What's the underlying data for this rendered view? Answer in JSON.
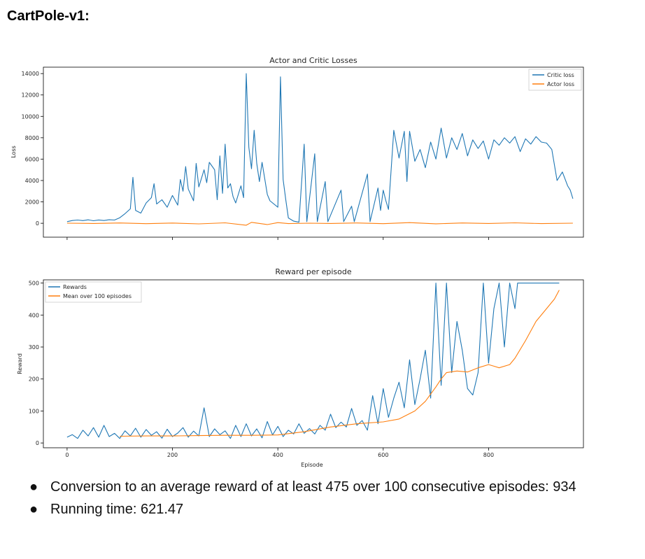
{
  "page": {
    "title": "CartPole-v1:",
    "bullets": [
      "Conversion to an average reward of at least 475 over 100 consecutive episodes: 934",
      "Running time: 621.47"
    ]
  },
  "colors": {
    "blue": "#1f77b4",
    "orange": "#ff7f0e"
  },
  "chart_data": [
    {
      "type": "line",
      "title": "Actor and Critic Losses",
      "xlabel": "",
      "ylabel": "Loss",
      "xlim": [
        -45,
        980
      ],
      "ylim": [
        -1300,
        14600
      ],
      "yticks": [
        0,
        2000,
        4000,
        6000,
        8000,
        10000,
        12000,
        14000
      ],
      "legend_position": "top-right",
      "grid": false,
      "series": [
        {
          "name": "Critic loss",
          "color": "#1f77b4",
          "points": [
            [
              0,
              150
            ],
            [
              10,
              260
            ],
            [
              20,
              300
            ],
            [
              30,
              250
            ],
            [
              40,
              320
            ],
            [
              50,
              240
            ],
            [
              60,
              310
            ],
            [
              70,
              260
            ],
            [
              80,
              330
            ],
            [
              90,
              300
            ],
            [
              100,
              520
            ],
            [
              110,
              900
            ],
            [
              120,
              1350
            ],
            [
              125,
              4300
            ],
            [
              130,
              1200
            ],
            [
              140,
              950
            ],
            [
              150,
              1900
            ],
            [
              160,
              2400
            ],
            [
              165,
              3700
            ],
            [
              170,
              1800
            ],
            [
              180,
              2200
            ],
            [
              190,
              1500
            ],
            [
              200,
              2600
            ],
            [
              210,
              1700
            ],
            [
              215,
              4100
            ],
            [
              220,
              3000
            ],
            [
              225,
              5300
            ],
            [
              230,
              3200
            ],
            [
              240,
              2100
            ],
            [
              245,
              5600
            ],
            [
              250,
              3400
            ],
            [
              260,
              5000
            ],
            [
              265,
              3800
            ],
            [
              270,
              5700
            ],
            [
              280,
              5000
            ],
            [
              285,
              2200
            ],
            [
              290,
              6300
            ],
            [
              295,
              2800
            ],
            [
              300,
              7400
            ],
            [
              305,
              3300
            ],
            [
              310,
              3700
            ],
            [
              315,
              2500
            ],
            [
              320,
              1900
            ],
            [
              330,
              3500
            ],
            [
              335,
              2400
            ],
            [
              340,
              14000
            ],
            [
              345,
              7100
            ],
            [
              350,
              5100
            ],
            [
              355,
              8700
            ],
            [
              360,
              5600
            ],
            [
              365,
              3900
            ],
            [
              370,
              5700
            ],
            [
              380,
              2700
            ],
            [
              385,
              2100
            ],
            [
              400,
              1500
            ],
            [
              405,
              13700
            ],
            [
              410,
              4100
            ],
            [
              415,
              2200
            ],
            [
              420,
              500
            ],
            [
              430,
              200
            ],
            [
              440,
              100
            ],
            [
              450,
              7400
            ],
            [
              455,
              150
            ],
            [
              470,
              6500
            ],
            [
              475,
              150
            ],
            [
              490,
              3900
            ],
            [
              495,
              150
            ],
            [
              520,
              3100
            ],
            [
              525,
              150
            ],
            [
              540,
              1600
            ],
            [
              545,
              150
            ],
            [
              570,
              4600
            ],
            [
              575,
              150
            ],
            [
              590,
              3300
            ],
            [
              595,
              1200
            ],
            [
              600,
              3100
            ],
            [
              605,
              2100
            ],
            [
              610,
              1300
            ],
            [
              620,
              8700
            ],
            [
              630,
              6100
            ],
            [
              640,
              8600
            ],
            [
              645,
              3900
            ],
            [
              650,
              8600
            ],
            [
              660,
              5800
            ],
            [
              670,
              6900
            ],
            [
              680,
              5200
            ],
            [
              690,
              7600
            ],
            [
              700,
              6000
            ],
            [
              710,
              8900
            ],
            [
              720,
              6100
            ],
            [
              730,
              8000
            ],
            [
              740,
              6900
            ],
            [
              750,
              8400
            ],
            [
              760,
              6300
            ],
            [
              770,
              7800
            ],
            [
              780,
              7000
            ],
            [
              790,
              7700
            ],
            [
              800,
              6000
            ],
            [
              810,
              7800
            ],
            [
              820,
              7300
            ],
            [
              830,
              8000
            ],
            [
              840,
              7500
            ],
            [
              850,
              8100
            ],
            [
              860,
              6700
            ],
            [
              870,
              7900
            ],
            [
              880,
              7400
            ],
            [
              890,
              8100
            ],
            [
              900,
              7600
            ],
            [
              910,
              7500
            ],
            [
              920,
              6900
            ],
            [
              930,
              4000
            ],
            [
              940,
              4800
            ],
            [
              950,
              3500
            ],
            [
              955,
              3100
            ],
            [
              960,
              2300
            ]
          ]
        },
        {
          "name": "Actor loss",
          "color": "#ff7f0e",
          "points": [
            [
              0,
              10
            ],
            [
              50,
              -20
            ],
            [
              100,
              30
            ],
            [
              150,
              -40
            ],
            [
              200,
              20
            ],
            [
              250,
              -60
            ],
            [
              300,
              40
            ],
            [
              340,
              -180
            ],
            [
              350,
              90
            ],
            [
              380,
              -120
            ],
            [
              400,
              60
            ],
            [
              420,
              -30
            ],
            [
              460,
              10
            ],
            [
              500,
              -20
            ],
            [
              550,
              30
            ],
            [
              600,
              -40
            ],
            [
              650,
              60
            ],
            [
              700,
              -50
            ],
            [
              750,
              30
            ],
            [
              800,
              -20
            ],
            [
              850,
              40
            ],
            [
              900,
              -30
            ],
            [
              960,
              10
            ]
          ]
        }
      ]
    },
    {
      "type": "line",
      "title": "Reward per episode",
      "xlabel": "Episode",
      "ylabel": "Reward",
      "xlim": [
        -45,
        980
      ],
      "ylim": [
        -15,
        510
      ],
      "xticks": [
        0,
        200,
        400,
        600,
        800
      ],
      "yticks": [
        0,
        100,
        200,
        300,
        400,
        500
      ],
      "legend_position": "top-left",
      "grid": false,
      "series": [
        {
          "name": "Rewards",
          "color": "#1f77b4",
          "points": [
            [
              0,
              18
            ],
            [
              10,
              26
            ],
            [
              20,
              14
            ],
            [
              30,
              40
            ],
            [
              40,
              22
            ],
            [
              50,
              48
            ],
            [
              60,
              18
            ],
            [
              70,
              55
            ],
            [
              80,
              20
            ],
            [
              90,
              30
            ],
            [
              100,
              14
            ],
            [
              110,
              38
            ],
            [
              120,
              22
            ],
            [
              130,
              46
            ],
            [
              140,
              18
            ],
            [
              150,
              42
            ],
            [
              160,
              24
            ],
            [
              170,
              35
            ],
            [
              180,
              15
            ],
            [
              190,
              43
            ],
            [
              200,
              20
            ],
            [
              210,
              31
            ],
            [
              220,
              48
            ],
            [
              230,
              18
            ],
            [
              240,
              37
            ],
            [
              250,
              22
            ],
            [
              260,
              110
            ],
            [
              270,
              20
            ],
            [
              280,
              44
            ],
            [
              290,
              26
            ],
            [
              300,
              38
            ],
            [
              310,
              14
            ],
            [
              320,
              55
            ],
            [
              330,
              20
            ],
            [
              340,
              60
            ],
            [
              350,
              22
            ],
            [
              360,
              44
            ],
            [
              370,
              16
            ],
            [
              380,
              67
            ],
            [
              390,
              25
            ],
            [
              400,
              52
            ],
            [
              410,
              20
            ],
            [
              420,
              40
            ],
            [
              430,
              28
            ],
            [
              440,
              60
            ],
            [
              450,
              30
            ],
            [
              460,
              45
            ],
            [
              470,
              28
            ],
            [
              480,
              55
            ],
            [
              490,
              40
            ],
            [
              500,
              90
            ],
            [
              510,
              48
            ],
            [
              520,
              65
            ],
            [
              530,
              50
            ],
            [
              540,
              108
            ],
            [
              550,
              55
            ],
            [
              560,
              70
            ],
            [
              570,
              40
            ],
            [
              580,
              148
            ],
            [
              590,
              60
            ],
            [
              600,
              170
            ],
            [
              610,
              80
            ],
            [
              620,
              140
            ],
            [
              630,
              190
            ],
            [
              640,
              110
            ],
            [
              650,
              260
            ],
            [
              660,
              120
            ],
            [
              670,
              200
            ],
            [
              680,
              290
            ],
            [
              690,
              140
            ],
            [
              700,
              500
            ],
            [
              710,
              180
            ],
            [
              720,
              500
            ],
            [
              730,
              220
            ],
            [
              740,
              380
            ],
            [
              750,
              290
            ],
            [
              760,
              170
            ],
            [
              770,
              150
            ],
            [
              780,
              220
            ],
            [
              790,
              500
            ],
            [
              800,
              250
            ],
            [
              810,
              420
            ],
            [
              820,
              500
            ],
            [
              830,
              300
            ],
            [
              840,
              500
            ],
            [
              850,
              420
            ],
            [
              855,
              500
            ],
            [
              860,
              500
            ],
            [
              880,
              500
            ],
            [
              900,
              500
            ],
            [
              920,
              500
            ],
            [
              934,
              500
            ]
          ]
        },
        {
          "name": "Mean over 100 episodes",
          "color": "#ff7f0e",
          "points": [
            [
              100,
              21
            ],
            [
              150,
              22
            ],
            [
              200,
              22
            ],
            [
              250,
              23
            ],
            [
              300,
              24
            ],
            [
              350,
              24
            ],
            [
              400,
              25
            ],
            [
              450,
              35
            ],
            [
              500,
              50
            ],
            [
              550,
              60
            ],
            [
              600,
              66
            ],
            [
              630,
              75
            ],
            [
              660,
              100
            ],
            [
              680,
              130
            ],
            [
              700,
              175
            ],
            [
              710,
              200
            ],
            [
              720,
              220
            ],
            [
              740,
              225
            ],
            [
              760,
              222
            ],
            [
              780,
              235
            ],
            [
              800,
              245
            ],
            [
              810,
              240
            ],
            [
              820,
              235
            ],
            [
              840,
              245
            ],
            [
              850,
              265
            ],
            [
              870,
              320
            ],
            [
              890,
              380
            ],
            [
              910,
              420
            ],
            [
              925,
              450
            ],
            [
              934,
              478
            ]
          ]
        }
      ]
    }
  ]
}
